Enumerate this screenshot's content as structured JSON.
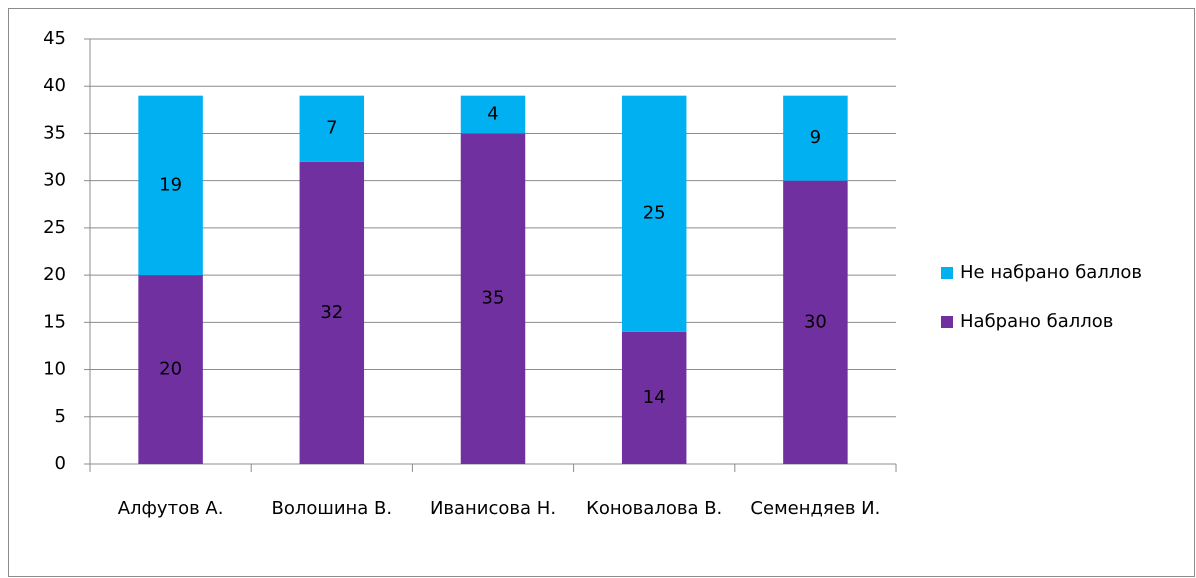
{
  "chart_data": {
    "type": "stacked_bar",
    "categories": [
      "Алфутов А.",
      "Волошина В.",
      "Иванисова Н.",
      "Коновалова В.",
      "Семендяев И."
    ],
    "series": [
      {
        "name": "Набрано баллов",
        "color": "#7030a0",
        "values": [
          20,
          32,
          35,
          14,
          30
        ]
      },
      {
        "name": "Не набрано баллов",
        "color": "#00b0f0",
        "values": [
          19,
          7,
          4,
          25,
          9
        ]
      }
    ],
    "ylim": [
      0,
      45
    ],
    "yticks": [
      0,
      5,
      10,
      15,
      20,
      25,
      30,
      35,
      40,
      45
    ],
    "grid": true,
    "legend": "right"
  }
}
